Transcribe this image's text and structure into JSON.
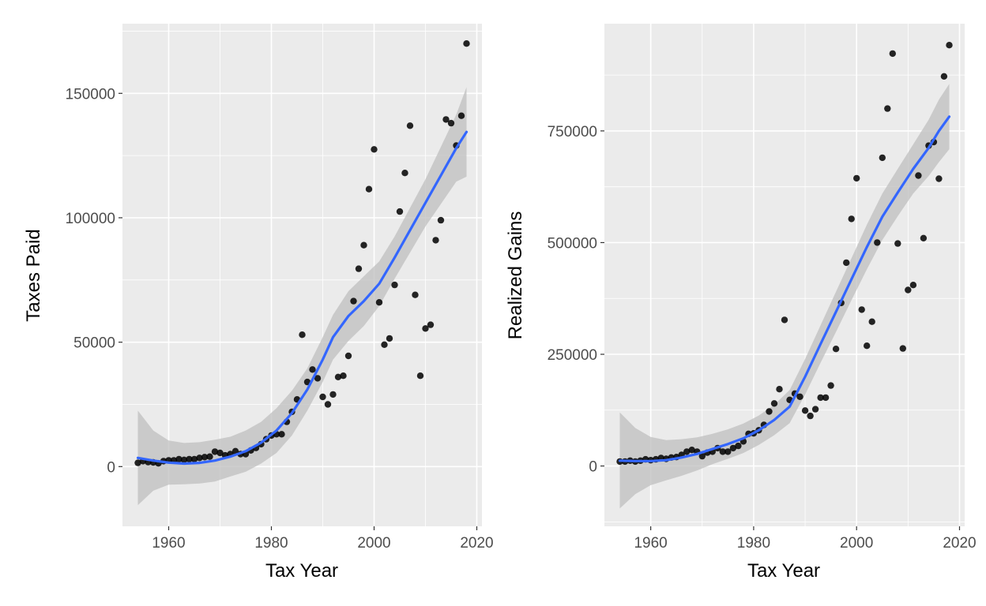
{
  "chart_data": [
    {
      "type": "scatter",
      "xlabel": "Tax Year",
      "ylabel": "Taxes Paid",
      "xlim": [
        1951,
        2021
      ],
      "ylim": [
        -24000,
        178000
      ],
      "xticks": [
        1960,
        1980,
        2000,
        2020
      ],
      "xtick_labels": [
        "1960",
        "1980",
        "2000",
        "2020"
      ],
      "yticks": [
        0,
        50000,
        100000,
        150000
      ],
      "ytick_labels": [
        "0",
        "50000",
        "100000",
        "150000"
      ],
      "grid": true,
      "colors": {
        "panel": "#ebebeb",
        "grid": "#ffffff",
        "point": "#000000",
        "smooth": "#3366ff",
        "ribbon": "#bfbfbf"
      },
      "points": [
        [
          1954,
          1500
        ],
        [
          1955,
          2200
        ],
        [
          1956,
          1800
        ],
        [
          1957,
          1700
        ],
        [
          1958,
          1300
        ],
        [
          1959,
          2200
        ],
        [
          1960,
          2500
        ],
        [
          1961,
          2500
        ],
        [
          1962,
          3000
        ],
        [
          1963,
          2700
        ],
        [
          1964,
          3000
        ],
        [
          1965,
          3000
        ],
        [
          1966,
          3500
        ],
        [
          1967,
          3800
        ],
        [
          1968,
          4000
        ],
        [
          1969,
          6000
        ],
        [
          1970,
          5500
        ],
        [
          1971,
          4500
        ],
        [
          1972,
          5000
        ],
        [
          1973,
          6200
        ],
        [
          1974,
          5000
        ],
        [
          1975,
          5000
        ],
        [
          1976,
          6500
        ],
        [
          1977,
          7500
        ],
        [
          1978,
          9000
        ],
        [
          1979,
          11000
        ],
        [
          1980,
          12500
        ],
        [
          1981,
          13000
        ],
        [
          1982,
          13000
        ],
        [
          1983,
          18000
        ],
        [
          1984,
          22000
        ],
        [
          1985,
          27000
        ],
        [
          1986,
          53000
        ],
        [
          1987,
          34000
        ],
        [
          1988,
          39000
        ],
        [
          1989,
          35500
        ],
        [
          1990,
          28000
        ],
        [
          1991,
          25000
        ],
        [
          1992,
          29000
        ],
        [
          1993,
          36000
        ],
        [
          1994,
          36500
        ],
        [
          1995,
          44500
        ],
        [
          1996,
          66500
        ],
        [
          1997,
          79500
        ],
        [
          1998,
          89000
        ],
        [
          1999,
          111500
        ],
        [
          2000,
          127500
        ],
        [
          2001,
          66000
        ],
        [
          2002,
          49000
        ],
        [
          2003,
          51500
        ],
        [
          2004,
          73000
        ],
        [
          2005,
          102500
        ],
        [
          2006,
          118000
        ],
        [
          2007,
          137000
        ],
        [
          2008,
          69000
        ],
        [
          2009,
          36500
        ],
        [
          2010,
          55500
        ],
        [
          2011,
          57000
        ],
        [
          2012,
          91000
        ],
        [
          2013,
          99000
        ],
        [
          2014,
          139500
        ],
        [
          2015,
          138000
        ],
        [
          2016,
          129000
        ],
        [
          2017,
          141000
        ],
        [
          2018,
          170000
        ]
      ],
      "smooth": [
        [
          1954,
          3500
        ],
        [
          1957,
          2400
        ],
        [
          1960,
          1600
        ],
        [
          1963,
          1200
        ],
        [
          1966,
          1500
        ],
        [
          1969,
          2400
        ],
        [
          1972,
          4000
        ],
        [
          1975,
          6200
        ],
        [
          1978,
          9600
        ],
        [
          1981,
          14500
        ],
        [
          1984,
          21500
        ],
        [
          1987,
          31000
        ],
        [
          1990,
          43000
        ],
        [
          1992,
          52000
        ],
        [
          1995,
          60500
        ],
        [
          1998,
          66500
        ],
        [
          2001,
          73500
        ],
        [
          2004,
          84000
        ],
        [
          2007,
          95000
        ],
        [
          2010,
          106000
        ],
        [
          2013,
          117000
        ],
        [
          2016,
          128000
        ],
        [
          2018,
          134500
        ]
      ],
      "ribbon_upper": [
        [
          1954,
          22500
        ],
        [
          1957,
          14500
        ],
        [
          1960,
          10500
        ],
        [
          1963,
          9500
        ],
        [
          1966,
          9800
        ],
        [
          1969,
          10800
        ],
        [
          1972,
          12000
        ],
        [
          1975,
          14500
        ],
        [
          1978,
          18000
        ],
        [
          1981,
          23500
        ],
        [
          1984,
          30500
        ],
        [
          1987,
          39500
        ],
        [
          1990,
          52000
        ],
        [
          1992,
          61000
        ],
        [
          1995,
          70500
        ],
        [
          1998,
          76500
        ],
        [
          2001,
          82500
        ],
        [
          2004,
          92500
        ],
        [
          2007,
          104000
        ],
        [
          2010,
          115500
        ],
        [
          2013,
          128500
        ],
        [
          2016,
          141500
        ],
        [
          2018,
          152500
        ]
      ],
      "ribbon_lower": [
        [
          1954,
          -15500
        ],
        [
          1957,
          -9700
        ],
        [
          1960,
          -7300
        ],
        [
          1963,
          -7100
        ],
        [
          1966,
          -6800
        ],
        [
          1969,
          -6000
        ],
        [
          1972,
          -4000
        ],
        [
          1975,
          -2100
        ],
        [
          1978,
          1200
        ],
        [
          1981,
          5500
        ],
        [
          1984,
          12500
        ],
        [
          1987,
          22500
        ],
        [
          1990,
          34000
        ],
        [
          1992,
          43000
        ],
        [
          1995,
          50500
        ],
        [
          1998,
          56500
        ],
        [
          2001,
          64500
        ],
        [
          2004,
          75500
        ],
        [
          2007,
          86000
        ],
        [
          2010,
          96500
        ],
        [
          2013,
          105500
        ],
        [
          2016,
          114500
        ],
        [
          2018,
          116500
        ]
      ]
    },
    {
      "type": "scatter",
      "xlabel": "Tax Year",
      "ylabel": "Realized Gains",
      "xlim": [
        1951,
        2021
      ],
      "ylim": [
        -135000,
        990000
      ],
      "xticks": [
        1960,
        1980,
        2000,
        2020
      ],
      "xtick_labels": [
        "1960",
        "1980",
        "2000",
        "2020"
      ],
      "yticks": [
        0,
        250000,
        500000,
        750000
      ],
      "ytick_labels": [
        "0",
        "250000",
        "500000",
        "750000"
      ],
      "grid": true,
      "colors": {
        "panel": "#ebebeb",
        "grid": "#ffffff",
        "point": "#000000",
        "smooth": "#3366ff",
        "ribbon": "#bfbfbf"
      },
      "points": [
        [
          1954,
          10000
        ],
        [
          1955,
          10000
        ],
        [
          1956,
          12000
        ],
        [
          1957,
          10000
        ],
        [
          1958,
          12000
        ],
        [
          1959,
          15000
        ],
        [
          1960,
          13000
        ],
        [
          1961,
          15000
        ],
        [
          1962,
          18000
        ],
        [
          1963,
          16000
        ],
        [
          1964,
          19000
        ],
        [
          1965,
          20000
        ],
        [
          1966,
          25000
        ],
        [
          1967,
          32000
        ],
        [
          1968,
          36000
        ],
        [
          1969,
          32000
        ],
        [
          1970,
          22000
        ],
        [
          1971,
          30000
        ],
        [
          1972,
          32000
        ],
        [
          1973,
          40000
        ],
        [
          1974,
          32000
        ],
        [
          1975,
          32000
        ],
        [
          1976,
          40000
        ],
        [
          1977,
          45000
        ],
        [
          1978,
          55000
        ],
        [
          1979,
          72000
        ],
        [
          1980,
          73000
        ],
        [
          1981,
          80000
        ],
        [
          1982,
          92000
        ],
        [
          1983,
          122000
        ],
        [
          1984,
          140000
        ],
        [
          1985,
          172000
        ],
        [
          1986,
          327000
        ],
        [
          1987,
          148000
        ],
        [
          1988,
          162000
        ],
        [
          1989,
          155000
        ],
        [
          1990,
          124000
        ],
        [
          1991,
          112000
        ],
        [
          1992,
          127000
        ],
        [
          1993,
          153000
        ],
        [
          1994,
          153000
        ],
        [
          1995,
          180000
        ],
        [
          1996,
          262000
        ],
        [
          1997,
          365000
        ],
        [
          1998,
          455000
        ],
        [
          1999,
          553000
        ],
        [
          2000,
          644000
        ],
        [
          2001,
          350000
        ],
        [
          2002,
          269000
        ],
        [
          2003,
          323000
        ],
        [
          2004,
          500000
        ],
        [
          2005,
          690000
        ],
        [
          2006,
          800000
        ],
        [
          2007,
          923000
        ],
        [
          2008,
          498000
        ],
        [
          2009,
          263000
        ],
        [
          2010,
          394000
        ],
        [
          2011,
          405000
        ],
        [
          2012,
          650000
        ],
        [
          2013,
          510000
        ],
        [
          2014,
          717000
        ],
        [
          2015,
          725000
        ],
        [
          2016,
          643000
        ],
        [
          2017,
          872000
        ],
        [
          2018,
          942000
        ]
      ],
      "smooth": [
        [
          1954,
          12000
        ],
        [
          1957,
          11000
        ],
        [
          1960,
          11000
        ],
        [
          1963,
          13000
        ],
        [
          1966,
          19000
        ],
        [
          1969,
          27000
        ],
        [
          1972,
          38000
        ],
        [
          1975,
          49000
        ],
        [
          1978,
          62000
        ],
        [
          1981,
          80000
        ],
        [
          1984,
          103000
        ],
        [
          1987,
          133000
        ],
        [
          1990,
          200000
        ],
        [
          1993,
          273000
        ],
        [
          1996,
          345000
        ],
        [
          1999,
          418000
        ],
        [
          2002,
          490000
        ],
        [
          2005,
          558000
        ],
        [
          2008,
          612000
        ],
        [
          2011,
          665000
        ],
        [
          2014,
          712000
        ],
        [
          2016,
          750000
        ],
        [
          2018,
          782000
        ]
      ],
      "ribbon_upper": [
        [
          1954,
          120000
        ],
        [
          1957,
          85000
        ],
        [
          1960,
          65000
        ],
        [
          1963,
          58000
        ],
        [
          1966,
          60000
        ],
        [
          1969,
          64000
        ],
        [
          1972,
          72000
        ],
        [
          1975,
          82000
        ],
        [
          1978,
          95000
        ],
        [
          1981,
          113000
        ],
        [
          1984,
          137000
        ],
        [
          1987,
          170000
        ],
        [
          1990,
          240000
        ],
        [
          1993,
          315000
        ],
        [
          1996,
          390000
        ],
        [
          1999,
          465000
        ],
        [
          2002,
          540000
        ],
        [
          2005,
          610000
        ],
        [
          2008,
          665000
        ],
        [
          2011,
          720000
        ],
        [
          2014,
          775000
        ],
        [
          2016,
          820000
        ],
        [
          2018,
          855000
        ]
      ],
      "ribbon_lower": [
        [
          1954,
          -95000
        ],
        [
          1957,
          -63000
        ],
        [
          1960,
          -43000
        ],
        [
          1963,
          -32000
        ],
        [
          1966,
          -22000
        ],
        [
          1969,
          -10000
        ],
        [
          1972,
          4000
        ],
        [
          1975,
          16000
        ],
        [
          1978,
          29000
        ],
        [
          1981,
          47000
        ],
        [
          1984,
          69000
        ],
        [
          1987,
          96000
        ],
        [
          1990,
          160000
        ],
        [
          1993,
          231000
        ],
        [
          1996,
          300000
        ],
        [
          1999,
          371000
        ],
        [
          2002,
          440000
        ],
        [
          2005,
          506000
        ],
        [
          2008,
          559000
        ],
        [
          2011,
          610000
        ],
        [
          2014,
          649000
        ],
        [
          2016,
          680000
        ],
        [
          2018,
          709000
        ]
      ]
    }
  ]
}
